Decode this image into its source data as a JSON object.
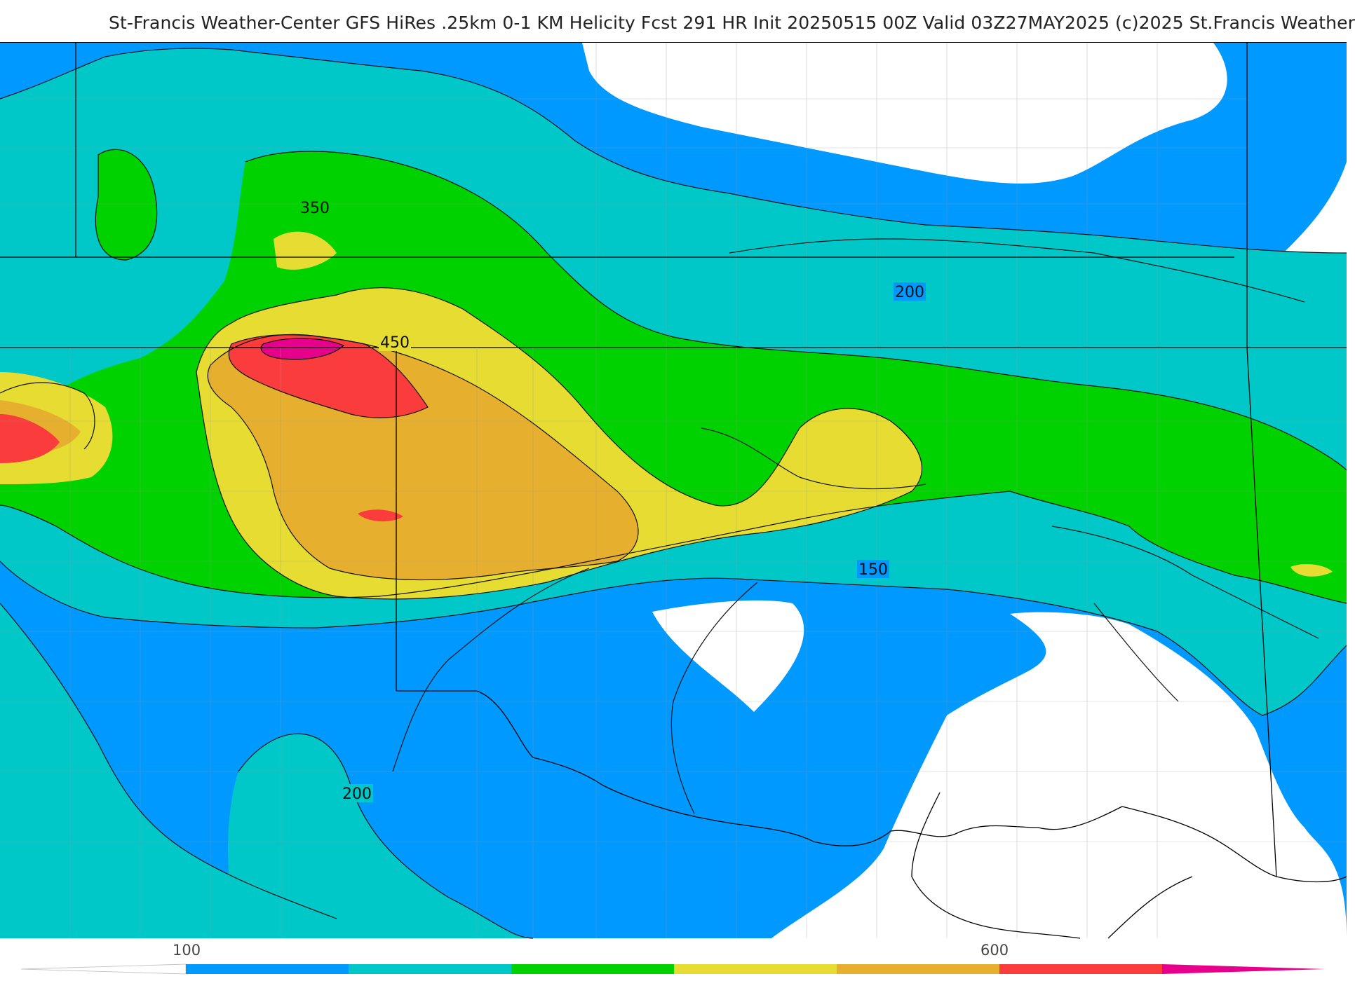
{
  "header": {
    "title": "St-Francis Weather-Center GFS HiRes .25km 0-1 KM Helicity Fcst 291 HR Init 20250515 00Z  Valid 03Z27MAY2025    (c)2025 St.Francis Weather"
  },
  "map": {
    "contour_labels": [
      "350",
      "450",
      "200",
      "150",
      "200"
    ]
  },
  "legend": {
    "tick_labels": [
      "100",
      "600"
    ],
    "colors": {
      "lt100": "#ffffff",
      "c100": "#0099ff",
      "c150": "#00c8c8",
      "c200": "#00d200",
      "c350": "#e6dc32",
      "c450": "#e6af2d",
      "c600": "#fa3c3c",
      "c750": "#e6008c"
    }
  },
  "colors": {
    "white": "#ffffff",
    "blue": "#0099ff",
    "cyan": "#00c8c8",
    "green": "#00d200",
    "yellow": "#e6dc32",
    "orange": "#e6af2d",
    "red": "#fa3c3c",
    "magenta": "#e6008c"
  }
}
